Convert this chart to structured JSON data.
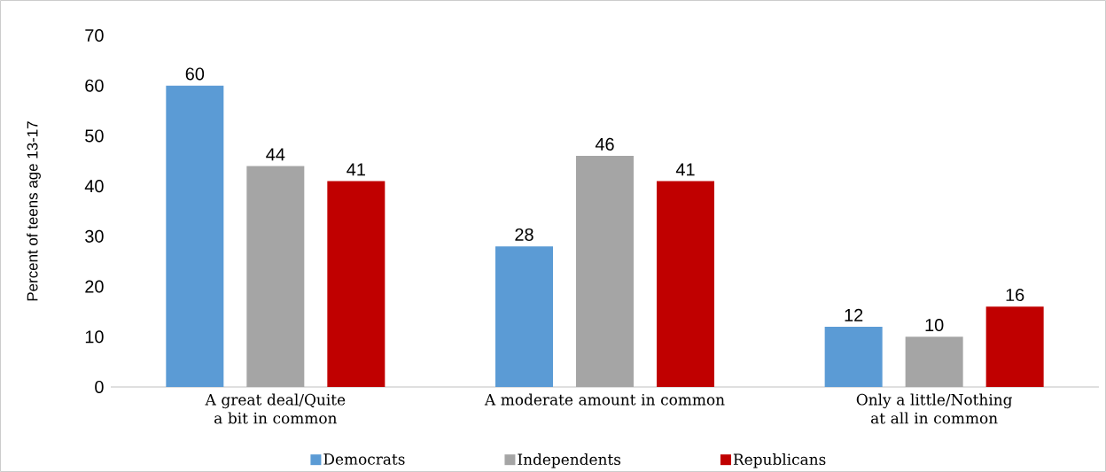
{
  "chart_data": {
    "type": "bar",
    "ylabel": "Percent of teens age 13-17",
    "categories": [
      "A great deal/Quite a bit in common",
      "A moderate amount in common",
      "Only a little/Nothing at all in common"
    ],
    "series": [
      {
        "name": "Democrats",
        "color": "#5b9bd5",
        "values": [
          60,
          28,
          12
        ]
      },
      {
        "name": "Independents",
        "color": "#a5a5a5",
        "values": [
          44,
          46,
          10
        ]
      },
      {
        "name": "Republicans",
        "color": "#c00000",
        "values": [
          41,
          41,
          16
        ]
      }
    ],
    "ylim": [
      0,
      70
    ],
    "yticks": [
      0,
      10,
      20,
      30,
      40,
      50,
      60,
      70
    ],
    "data_labels": true,
    "legend": "bottom"
  }
}
